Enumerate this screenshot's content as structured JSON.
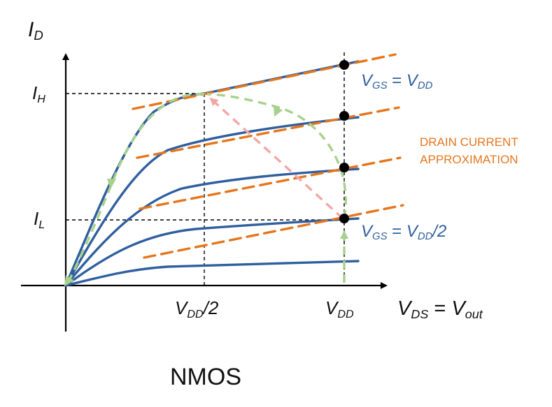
{
  "axes": {
    "y_label": {
      "main": "I",
      "sub": "D"
    },
    "x_label": {
      "v": "V",
      "ds": "DS",
      "eq": " = ",
      "v2": "V",
      "out": "out"
    }
  },
  "y_ticks": {
    "high": {
      "main": "I",
      "sub": "H"
    },
    "low": {
      "main": "I",
      "sub": "L"
    }
  },
  "x_ticks": {
    "half": {
      "v": "V",
      "sub": "DD",
      "tail": "/2"
    },
    "full": {
      "v": "V",
      "sub": "DD"
    }
  },
  "curve_labels": {
    "top": {
      "v": "V",
      "gs": "GS",
      "eq": " = ",
      "v2": "V",
      "dd": "DD",
      "tail": ""
    },
    "bottom": {
      "v": "V",
      "gs": "GS",
      "eq": " = ",
      "v2": "V",
      "dd": "DD",
      "tail": "/2"
    }
  },
  "approx_label": {
    "line1": "DRAIN CURRENT",
    "line2": "APPROXIMATION"
  },
  "caption": "NMOS",
  "colors": {
    "curve": "#2f5f9e",
    "approximation": "#e5761c",
    "green_path": "#a9d18e",
    "pink_path": "#f4a6a6",
    "axis": "#000000"
  }
}
